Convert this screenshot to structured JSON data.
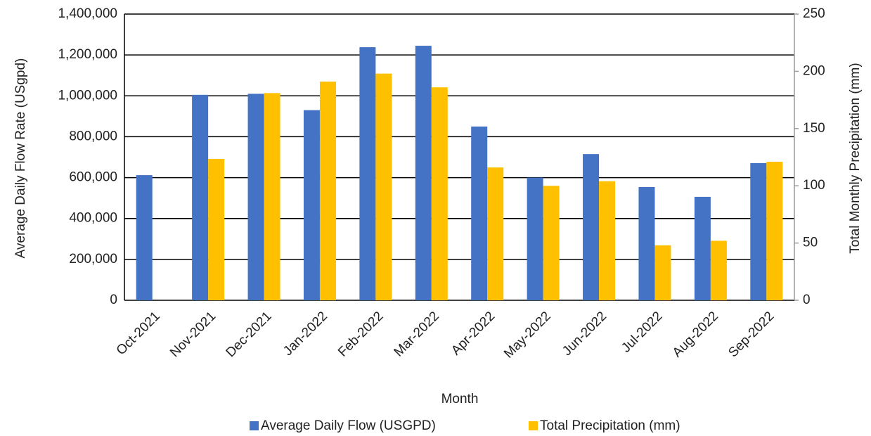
{
  "chart_data": {
    "type": "bar",
    "x_label": "Month",
    "y_label": "Average Daily Flow Rate (USgpd)",
    "y2_label": "Total Monthly Precipitation (mm)",
    "categories": [
      "Oct-2021",
      "Nov-2021",
      "Dec-2021",
      "Jan-2022",
      "Feb-2022",
      "Mar-2022",
      "Apr-2022",
      "May-2022",
      "Jun-2022",
      "Jul-2022",
      "Aug-2022",
      "Sep-2022"
    ],
    "series": [
      {
        "name": "Average Daily Flow (USGPD)",
        "color": "#4472c4",
        "values": [
          612000,
          1005000,
          1010000,
          930000,
          1238000,
          1245000,
          850000,
          600000,
          715000,
          554000,
          506000,
          671000
        ]
      },
      {
        "name": "Total Precipitation (mm)",
        "color": "#ffc000",
        "axis": "y2",
        "values": [
          null,
          123.5,
          181,
          191,
          198,
          186,
          116,
          100,
          104,
          48,
          52,
          121
        ]
      }
    ],
    "ylim": [
      0,
      1400000
    ],
    "yticks": [
      0,
      {
        "value": 200000,
        "label": "200,000"
      },
      {
        "value": 400000,
        "label": "400,000"
      },
      {
        "value": 600000,
        "label": "600,000"
      },
      {
        "value": 800000,
        "label": "800,000"
      },
      {
        "value": 1000000,
        "label": "1,000,000"
      },
      {
        "value": 1200000,
        "label": "1,200,000"
      },
      {
        "value": 1400000,
        "label": "1,400,000"
      }
    ],
    "y2lim": [
      0,
      250
    ],
    "y2ticks": [
      0,
      50,
      100,
      150,
      200,
      250
    ],
    "grid": true,
    "legend": "bottom"
  }
}
